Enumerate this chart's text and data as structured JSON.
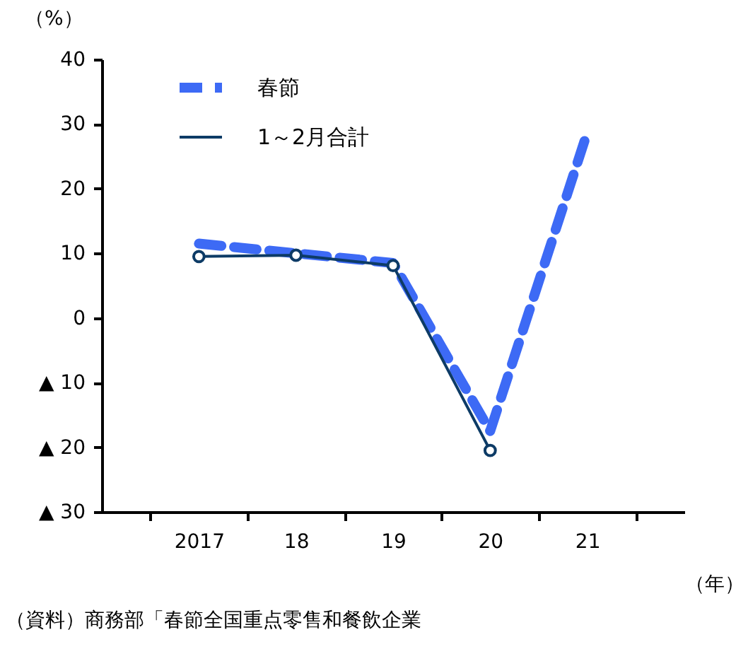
{
  "chart_data": {
    "type": "line",
    "ylabel": "（%）",
    "xlabel": "（年）",
    "categories": [
      "2017",
      "18",
      "19",
      "20",
      "21"
    ],
    "series": [
      {
        "name": "春節",
        "color": "#3d6af5",
        "line_style": "dashed",
        "marker": "none",
        "values": [
          11.5,
          10.0,
          8.5,
          -17.5,
          28.7
        ]
      },
      {
        "name": "1～2月合計",
        "color": "#0d3b66",
        "line_style": "solid",
        "marker": "circle",
        "values": [
          9.5,
          9.7,
          8.1,
          -20.5,
          null
        ]
      }
    ],
    "ylim": [
      -30,
      40
    ],
    "yticks": [
      {
        "value": -30,
        "label": "▲ 30"
      },
      {
        "value": -20,
        "label": "▲ 20"
      },
      {
        "value": -10,
        "label": "▲ 10"
      },
      0,
      10,
      20,
      30,
      40
    ],
    "grid": false,
    "legend": "top left",
    "annotations": [
      "（資料）商務部「春節全国重点零售和餐飲企業"
    ]
  }
}
